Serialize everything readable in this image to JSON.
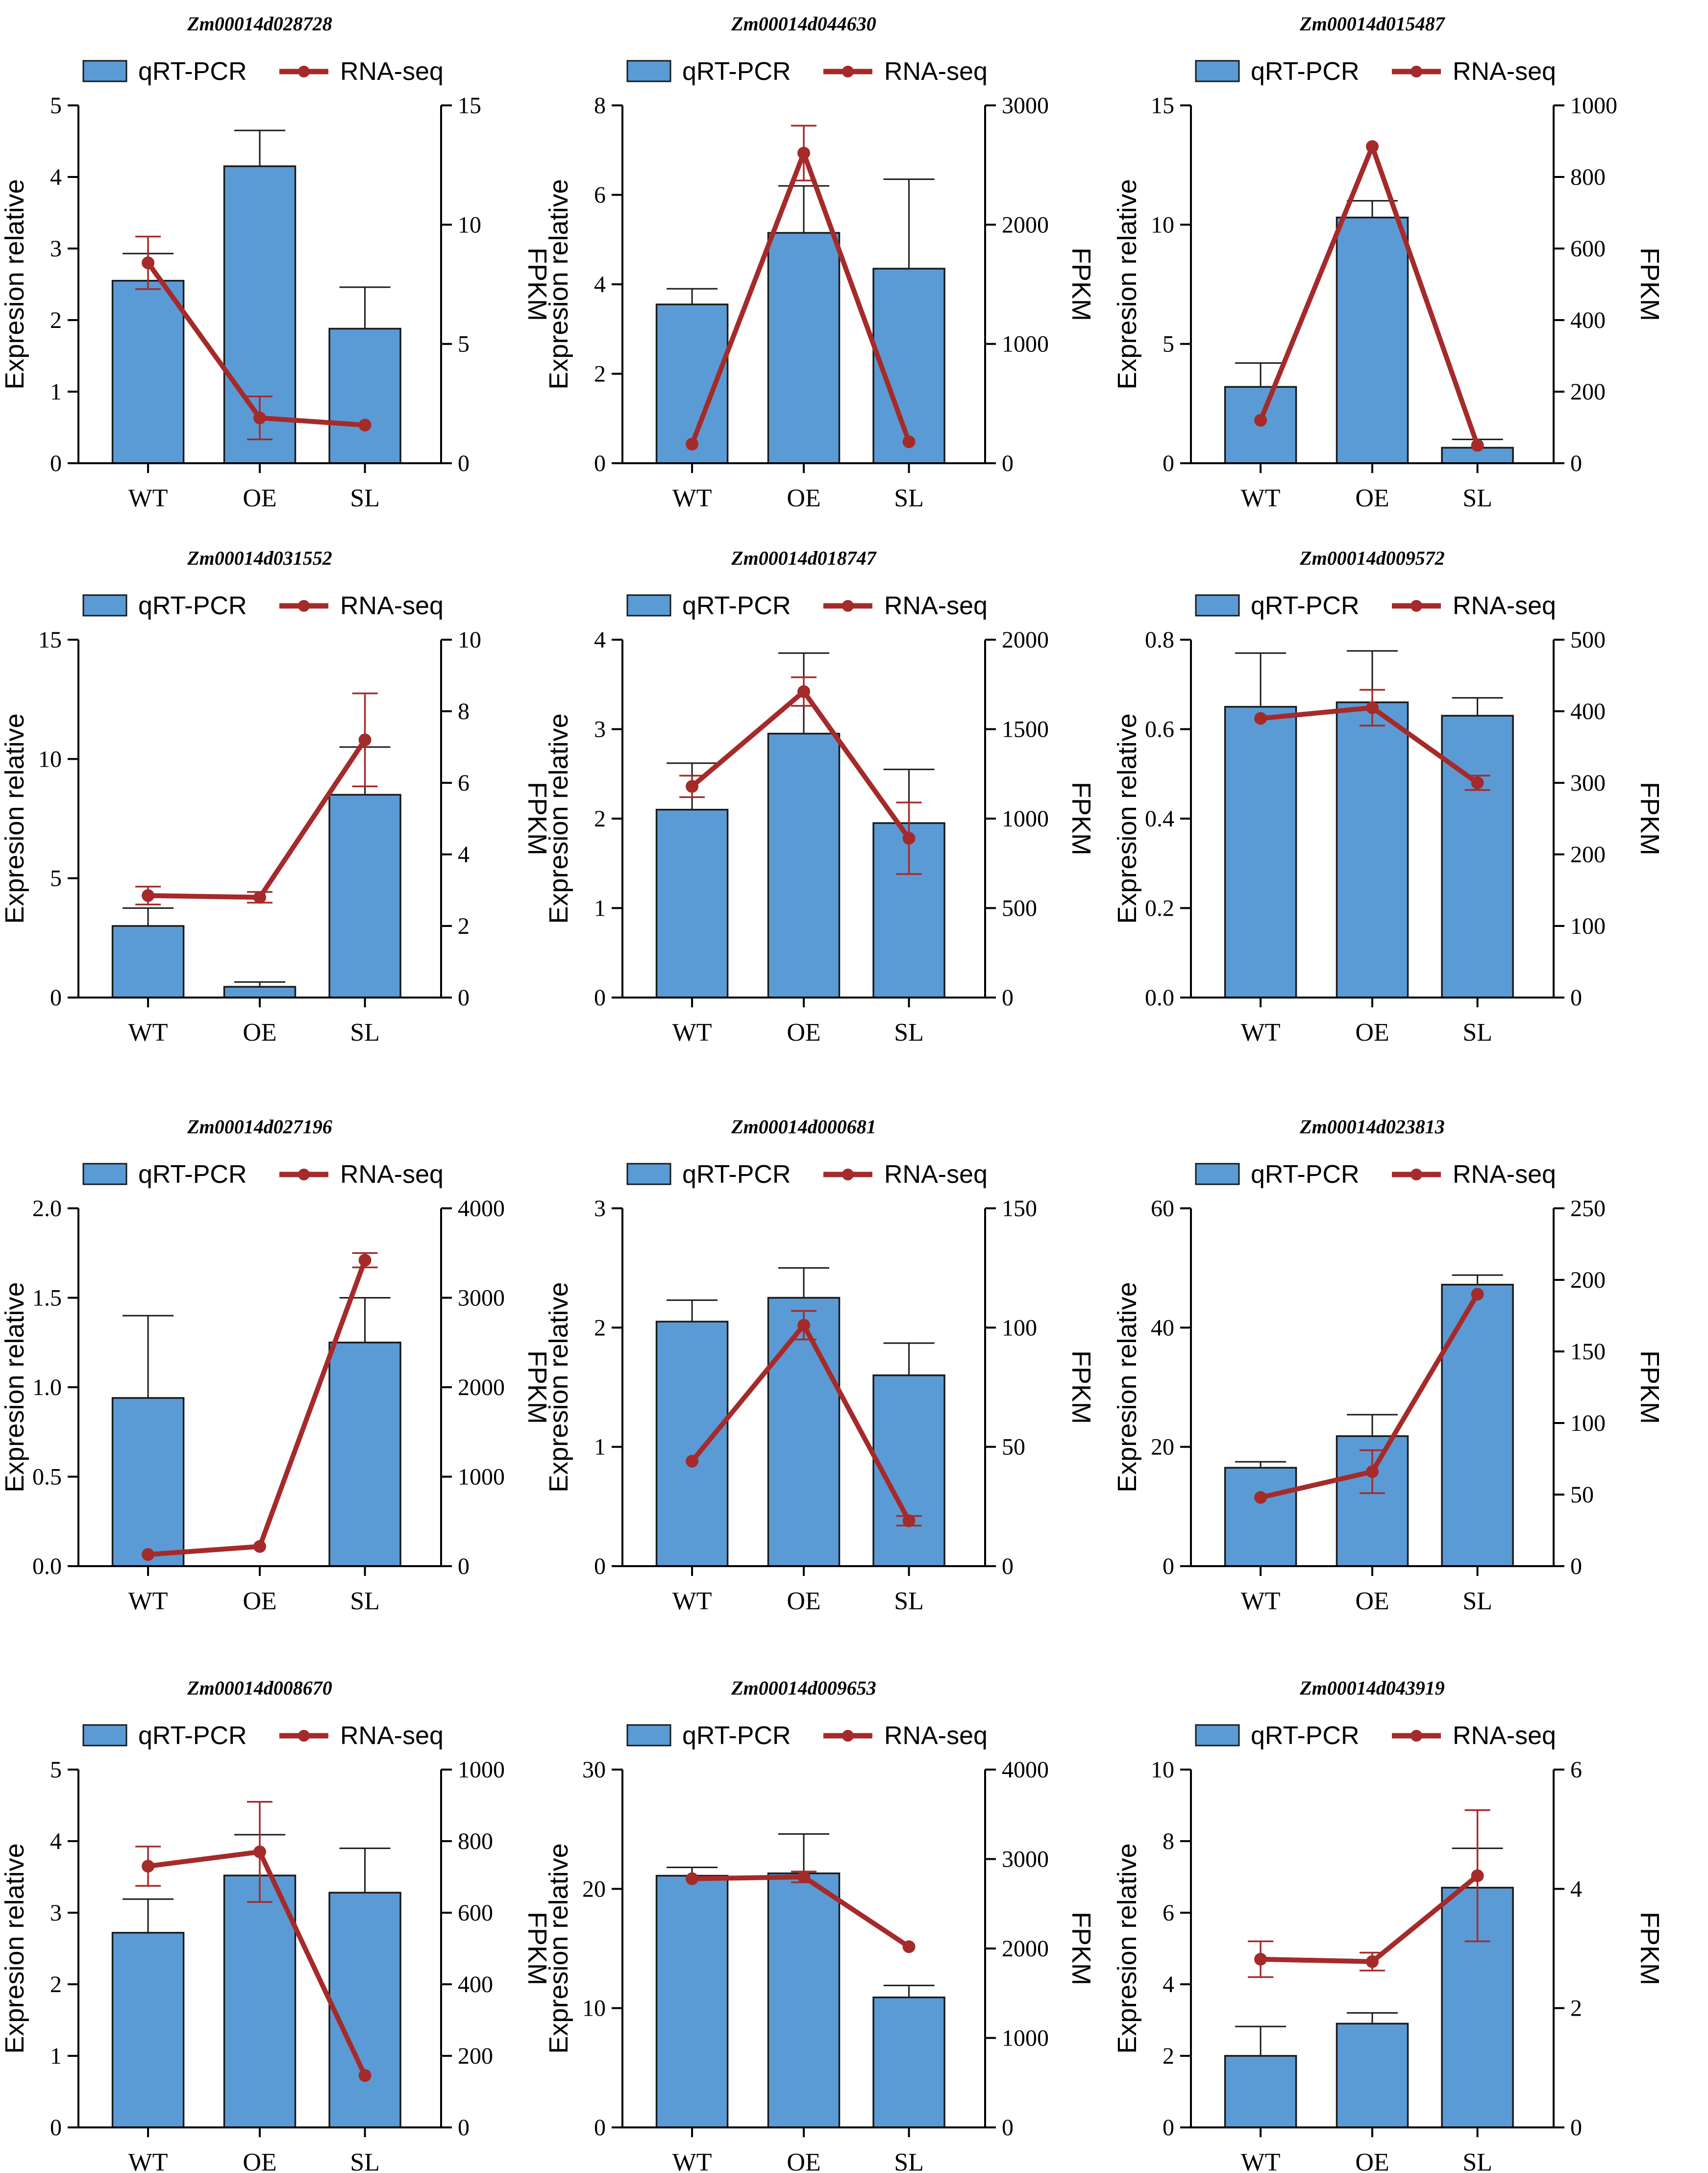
{
  "legend": {
    "bar_label": "qRT-PCR",
    "line_label": "RNA-seq"
  },
  "colors": {
    "bar": "#5b9bd5",
    "bar_edge": "#1a1a1a",
    "line": "#a52a2a",
    "axis": "#000000"
  },
  "chart_data": [
    {
      "type": "bar",
      "title": "Zm00014d028728",
      "categories": [
        "WT",
        "OE",
        "SL"
      ],
      "ylabel": "Expresion relative",
      "y2label": "FPKM",
      "ylim": [
        0,
        5
      ],
      "yticks": [
        "0",
        "1",
        "2",
        "3",
        "4",
        "5"
      ],
      "y2lim": [
        0,
        15
      ],
      "y2ticks": [
        "0",
        "5",
        "10",
        "15"
      ],
      "series": [
        {
          "name": "qRT-PCR",
          "axis": "left",
          "values": [
            2.55,
            4.15,
            1.88
          ],
          "errors": [
            0.38,
            0.5,
            0.58
          ]
        },
        {
          "name": "RNA-seq",
          "axis": "right",
          "values": [
            8.4,
            1.9,
            1.6
          ],
          "errors": [
            1.1,
            0.9,
            0
          ]
        }
      ]
    },
    {
      "type": "bar",
      "title": "Zm00014d044630",
      "categories": [
        "WT",
        "OE",
        "SL"
      ],
      "ylabel": "Expresion relative",
      "y2label": "FPKM",
      "ylim": [
        0,
        8
      ],
      "yticks": [
        "0",
        "2",
        "4",
        "6",
        "8"
      ],
      "y2lim": [
        0,
        3000
      ],
      "y2ticks": [
        "0",
        "1000",
        "2000",
        "3000"
      ],
      "series": [
        {
          "name": "qRT-PCR",
          "axis": "left",
          "values": [
            3.55,
            5.15,
            4.35
          ],
          "errors": [
            0.35,
            1.05,
            2.0
          ]
        },
        {
          "name": "RNA-seq",
          "axis": "right",
          "values": [
            160,
            2600,
            180
          ],
          "errors": [
            0,
            230,
            0
          ]
        }
      ]
    },
    {
      "type": "bar",
      "title": "Zm00014d015487",
      "categories": [
        "WT",
        "OE",
        "SL"
      ],
      "ylabel": "Expresion relative",
      "y2label": "FPKM",
      "ylim": [
        0,
        15
      ],
      "yticks": [
        "0",
        "5",
        "10",
        "15"
      ],
      "y2lim": [
        0,
        1000
      ],
      "y2ticks": [
        "0",
        "200",
        "400",
        "600",
        "800",
        "1000"
      ],
      "series": [
        {
          "name": "qRT-PCR",
          "axis": "left",
          "values": [
            3.2,
            10.3,
            0.65
          ],
          "errors": [
            1.0,
            0.7,
            0.35
          ]
        },
        {
          "name": "RNA-seq",
          "axis": "right",
          "values": [
            120,
            885,
            50
          ],
          "errors": [
            0,
            0,
            0
          ]
        }
      ]
    },
    {
      "type": "bar",
      "title": "Zm00014d031552",
      "categories": [
        "WT",
        "OE",
        "SL"
      ],
      "ylabel": "Expresion relative",
      "y2label": "FPKM",
      "ylim": [
        0,
        15
      ],
      "yticks": [
        "0",
        "5",
        "10",
        "15"
      ],
      "y2lim": [
        0,
        10
      ],
      "y2ticks": [
        "0",
        "2",
        "4",
        "6",
        "8",
        "10"
      ],
      "series": [
        {
          "name": "qRT-PCR",
          "axis": "left",
          "values": [
            3.0,
            0.45,
            8.5
          ],
          "errors": [
            0.75,
            0.2,
            2.0
          ]
        },
        {
          "name": "RNA-seq",
          "axis": "right",
          "values": [
            2.85,
            2.8,
            7.2
          ],
          "errors": [
            0.25,
            0.15,
            1.3
          ]
        }
      ]
    },
    {
      "type": "bar",
      "title": "Zm00014d018747",
      "categories": [
        "WT",
        "OE",
        "SL"
      ],
      "ylabel": "Expresion relative",
      "y2label": "FPKM",
      "ylim": [
        0,
        4
      ],
      "yticks": [
        "0",
        "1",
        "2",
        "3",
        "4"
      ],
      "y2lim": [
        0,
        2000
      ],
      "y2ticks": [
        "0",
        "500",
        "1000",
        "1500",
        "2000"
      ],
      "series": [
        {
          "name": "qRT-PCR",
          "axis": "left",
          "values": [
            2.1,
            2.95,
            1.95
          ],
          "errors": [
            0.52,
            0.9,
            0.6
          ]
        },
        {
          "name": "RNA-seq",
          "axis": "right",
          "values": [
            1180,
            1710,
            890
          ],
          "errors": [
            60,
            80,
            200
          ]
        }
      ]
    },
    {
      "type": "bar",
      "title": "Zm00014d009572",
      "categories": [
        "WT",
        "OE",
        "SL"
      ],
      "ylabel": "Expresion relative",
      "y2label": "FPKM",
      "ylim": [
        0,
        0.8
      ],
      "yticks": [
        "0.0",
        "0.2",
        "0.4",
        "0.6",
        "0.8"
      ],
      "y2lim": [
        0,
        500
      ],
      "y2ticks": [
        "0",
        "100",
        "200",
        "300",
        "400",
        "500"
      ],
      "series": [
        {
          "name": "qRT-PCR",
          "axis": "left",
          "values": [
            0.65,
            0.66,
            0.63
          ],
          "errors": [
            0.12,
            0.115,
            0.04
          ]
        },
        {
          "name": "RNA-seq",
          "axis": "right",
          "values": [
            390,
            405,
            300
          ],
          "errors": [
            0,
            25,
            10
          ]
        }
      ]
    },
    {
      "type": "bar",
      "title": "Zm00014d027196",
      "categories": [
        "WT",
        "OE",
        "SL"
      ],
      "ylabel": "Expresion relative",
      "y2label": "FPKM",
      "ylim": [
        0,
        2.0
      ],
      "yticks": [
        "0.0",
        "0.5",
        "1.0",
        "1.5",
        "2.0"
      ],
      "y2lim": [
        0,
        4000
      ],
      "y2ticks": [
        "0",
        "1000",
        "2000",
        "3000",
        "4000"
      ],
      "series": [
        {
          "name": "qRT-PCR",
          "axis": "left",
          "values": [
            0.94,
            0,
            1.25
          ],
          "errors": [
            0.46,
            0,
            0.25
          ]
        },
        {
          "name": "RNA-seq",
          "axis": "right",
          "values": [
            130,
            220,
            3420
          ],
          "errors": [
            0,
            0,
            80
          ]
        }
      ]
    },
    {
      "type": "bar",
      "title": "Zm00014d000681",
      "categories": [
        "WT",
        "OE",
        "SL"
      ],
      "ylabel": "Expresion relative",
      "y2label": "FPKM",
      "ylim": [
        0,
        3
      ],
      "yticks": [
        "0",
        "1",
        "2",
        "3"
      ],
      "y2lim": [
        0,
        150
      ],
      "y2ticks": [
        "0",
        "50",
        "100",
        "150"
      ],
      "series": [
        {
          "name": "qRT-PCR",
          "axis": "left",
          "values": [
            2.05,
            2.25,
            1.6
          ],
          "errors": [
            0.18,
            0.25,
            0.27
          ]
        },
        {
          "name": "RNA-seq",
          "axis": "right",
          "values": [
            44,
            101,
            19
          ],
          "errors": [
            0,
            6,
            2
          ]
        }
      ]
    },
    {
      "type": "bar",
      "title": "Zm00014d023813",
      "categories": [
        "WT",
        "OE",
        "SL"
      ],
      "ylabel": "Expresion relative",
      "y2label": "FPKM",
      "ylim": [
        0,
        60
      ],
      "yticks": [
        "0",
        "20",
        "40",
        "60"
      ],
      "y2lim": [
        0,
        250
      ],
      "y2ticks": [
        "0",
        "50",
        "100",
        "150",
        "200",
        "250"
      ],
      "series": [
        {
          "name": "qRT-PCR",
          "axis": "left",
          "values": [
            16.5,
            21.8,
            47.2
          ],
          "errors": [
            1.0,
            3.6,
            1.6
          ]
        },
        {
          "name": "RNA-seq",
          "axis": "right",
          "values": [
            48,
            66,
            190
          ],
          "errors": [
            0,
            15,
            0
          ]
        }
      ]
    },
    {
      "type": "bar",
      "title": "Zm00014d008670",
      "categories": [
        "WT",
        "OE",
        "SL"
      ],
      "ylabel": "Expresion relative",
      "y2label": "FPKM",
      "ylim": [
        0,
        5
      ],
      "yticks": [
        "0",
        "1",
        "2",
        "3",
        "4",
        "5"
      ],
      "y2lim": [
        0,
        1000
      ],
      "y2ticks": [
        "0",
        "200",
        "400",
        "600",
        "800",
        "1000"
      ],
      "series": [
        {
          "name": "qRT-PCR",
          "axis": "left",
          "values": [
            2.72,
            3.52,
            3.28
          ],
          "errors": [
            0.47,
            0.57,
            0.62
          ]
        },
        {
          "name": "RNA-seq",
          "axis": "right",
          "values": [
            730,
            770,
            145
          ],
          "errors": [
            55,
            140,
            0
          ]
        }
      ]
    },
    {
      "type": "bar",
      "title": "Zm00014d009653",
      "categories": [
        "WT",
        "OE",
        "SL"
      ],
      "ylabel": "Expresion relative",
      "y2label": "FPKM",
      "ylim": [
        0,
        30
      ],
      "yticks": [
        "0",
        "10",
        "20",
        "30"
      ],
      "y2lim": [
        0,
        4000
      ],
      "y2ticks": [
        "0",
        "1000",
        "2000",
        "3000",
        "4000"
      ],
      "series": [
        {
          "name": "qRT-PCR",
          "axis": "left",
          "values": [
            21.1,
            21.3,
            10.9
          ],
          "errors": [
            0.7,
            3.3,
            1.0
          ]
        },
        {
          "name": "RNA-seq",
          "axis": "right",
          "values": [
            2780,
            2800,
            2020
          ],
          "errors": [
            0,
            60,
            0
          ]
        }
      ]
    },
    {
      "type": "bar",
      "title": "Zm00014d043919",
      "categories": [
        "WT",
        "OE",
        "SL"
      ],
      "ylabel": "Expresion relative",
      "y2label": "FPKM",
      "ylim": [
        0,
        10
      ],
      "yticks": [
        "0",
        "2",
        "4",
        "6",
        "8",
        "10"
      ],
      "y2lim": [
        0,
        6
      ],
      "y2ticks": [
        "0",
        "2",
        "4",
        "6"
      ],
      "series": [
        {
          "name": "qRT-PCR",
          "axis": "left",
          "values": [
            2.0,
            2.9,
            6.7
          ],
          "errors": [
            0.82,
            0.3,
            1.1
          ]
        },
        {
          "name": "RNA-seq",
          "axis": "right",
          "values": [
            2.82,
            2.78,
            4.22
          ],
          "errors": [
            0.3,
            0.15,
            1.1
          ]
        }
      ]
    }
  ]
}
